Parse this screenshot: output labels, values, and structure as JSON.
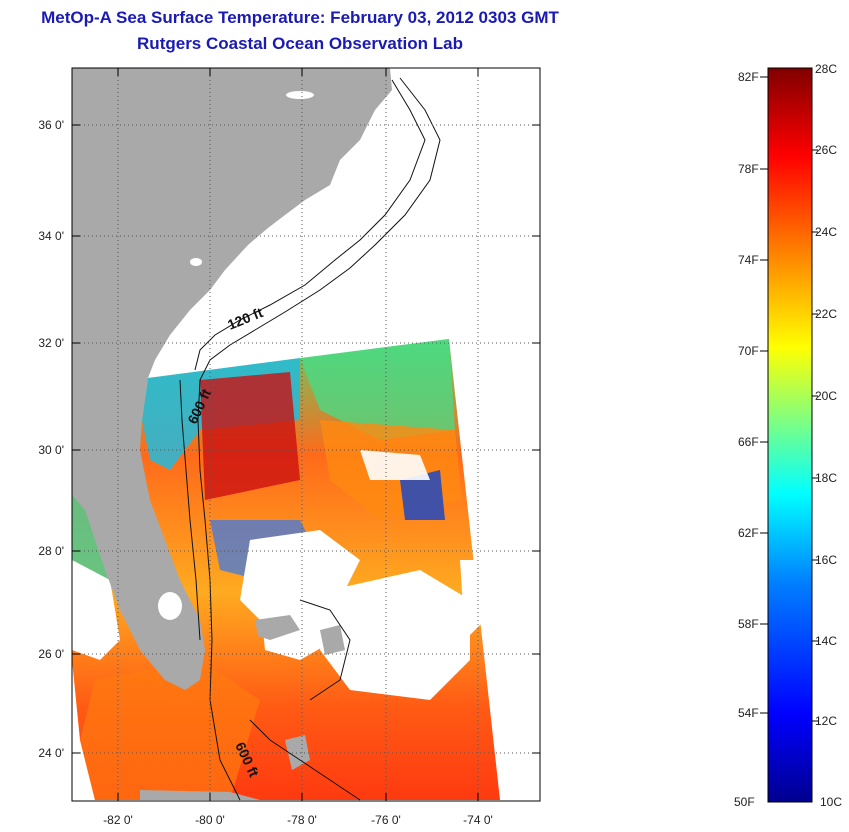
{
  "header": {
    "title": "MetOp-A Sea Surface Temperature:  February 03, 2012 0303 GMT",
    "subtitle": "Rutgers Coastal Ocean Observation Lab"
  },
  "map": {
    "lat_ticks": [
      "36 0'",
      "34 0'",
      "32 0'",
      "30 0'",
      "28 0'",
      "26 0'",
      "24 0'"
    ],
    "lon_ticks": [
      "-82 0'",
      "-80 0'",
      "-78 0'",
      "-76 0'",
      "-74 0'"
    ],
    "contour_labels": [
      "120 ft",
      "600 ft",
      "600 ft"
    ],
    "colors": {
      "land": "#a9a9a9",
      "ocean_nodata": "#ffffff",
      "grid": "#555555"
    }
  },
  "colorbar": {
    "fahrenheit_labels": [
      "82F",
      "78F",
      "74F",
      "70F",
      "66F",
      "62F",
      "58F",
      "54F",
      "50F"
    ],
    "celsius_labels": [
      "28C",
      "26C",
      "24C",
      "22C",
      "20C",
      "18C",
      "16C",
      "14C",
      "12C",
      "10C"
    ],
    "colors": [
      "#00008f",
      "#0000ff",
      "#0080ff",
      "#00ffff",
      "#80ff80",
      "#ffff00",
      "#ff8000",
      "#ff0000",
      "#800000"
    ]
  }
}
